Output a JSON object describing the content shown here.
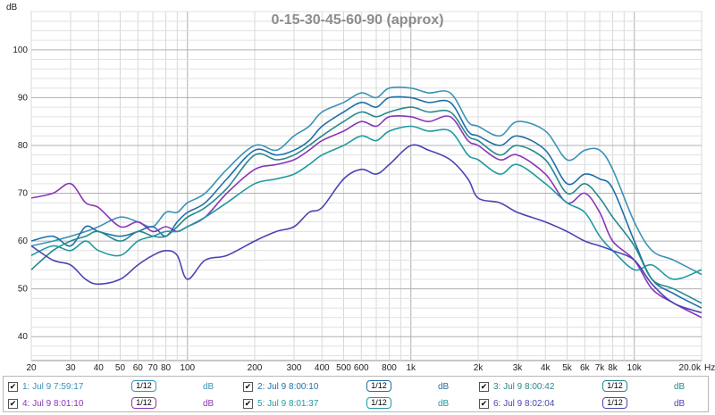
{
  "chart_data": {
    "type": "line",
    "title": "0-15-30-45-60-90 (approx)",
    "ylabel": "dB",
    "xlabel": "Hz",
    "xscale": "log",
    "xlim": [
      20,
      20000
    ],
    "ylim": [
      35,
      108
    ],
    "grid": true,
    "legend_position": "bottom",
    "y_ticks": [
      40,
      50,
      60,
      70,
      80,
      90,
      100
    ],
    "y_tick_labels": [
      "40",
      "50",
      "60",
      "70",
      "80",
      "90",
      "100"
    ],
    "x_ticks": [
      20,
      30,
      40,
      50,
      60,
      70,
      80,
      100,
      200,
      300,
      400,
      500,
      600,
      800,
      1000,
      2000,
      3000,
      4000,
      5000,
      6000,
      7000,
      8000,
      10000,
      20000
    ],
    "x_tick_labels": [
      "20",
      "30",
      "40",
      "50",
      "60",
      "70",
      "80",
      "100",
      "200",
      "300",
      "400",
      "500",
      "600",
      "800",
      "1k",
      "2k",
      "3k",
      "4k",
      "5k",
      "6k",
      "7k",
      "8k",
      "10k",
      "20.0k"
    ],
    "x": [
      20,
      25,
      30,
      35,
      40,
      50,
      60,
      70,
      80,
      90,
      100,
      120,
      150,
      200,
      250,
      300,
      350,
      400,
      500,
      600,
      700,
      800,
      1000,
      1200,
      1500,
      1800,
      2000,
      2500,
      3000,
      4000,
      5000,
      6000,
      7000,
      8000,
      10000,
      12000,
      15000,
      20000
    ],
    "series": [
      {
        "name": "1: Jul 9 7:59:17",
        "color": "#3a93b7",
        "smoothing": "1/12",
        "unit": "dB",
        "values": [
          59,
          60,
          61,
          62,
          63,
          65,
          64,
          63,
          66,
          66,
          68,
          70,
          75,
          80,
          79,
          82,
          84,
          87,
          89,
          91,
          90,
          92,
          92,
          91,
          91,
          85,
          84,
          82,
          85,
          83,
          77,
          79,
          79,
          75,
          64,
          58,
          56,
          53
        ]
      },
      {
        "name": "2: Jul 9 8:00:10",
        "color": "#1f6fa8",
        "smoothing": "1/12",
        "unit": "dB",
        "values": [
          60,
          61,
          59,
          63,
          62,
          61,
          62,
          63,
          61,
          64,
          66,
          68,
          73,
          79,
          78,
          79,
          81,
          84,
          87,
          89,
          88,
          90,
          90,
          89,
          89,
          83,
          82,
          80,
          82,
          79,
          72,
          74,
          73,
          71,
          60,
          52,
          49,
          46
        ]
      },
      {
        "name": "3: Jul 9 8:00:42",
        "color": "#27888d",
        "smoothing": "1/12",
        "unit": "dB",
        "values": [
          54,
          58,
          60,
          61,
          62,
          60,
          62,
          61,
          61,
          63,
          65,
          67,
          71,
          78,
          77,
          78,
          80,
          82,
          85,
          87,
          86,
          87,
          88,
          87,
          87,
          82,
          81,
          78,
          80,
          77,
          70,
          72,
          69,
          65,
          59,
          52,
          50,
          47
        ]
      },
      {
        "name": "4: Jul 9 8:01:10",
        "color": "#8b35b8",
        "smoothing": "1/12",
        "unit": "dB",
        "values": [
          69,
          70,
          72,
          68,
          67,
          63,
          64,
          62,
          63,
          62,
          63,
          65,
          70,
          75,
          76,
          77,
          79,
          81,
          83,
          85,
          84,
          86,
          86,
          85,
          86,
          81,
          80,
          77,
          78,
          74,
          68,
          70,
          66,
          60,
          56,
          50,
          47,
          44
        ]
      },
      {
        "name": "5: Jul 9 8:01:37",
        "color": "#1f9aa0",
        "smoothing": "1/12",
        "unit": "dB",
        "values": [
          57,
          59,
          58,
          60,
          58,
          57,
          60,
          61,
          62,
          62,
          63,
          65,
          68,
          72,
          73,
          74,
          76,
          78,
          80,
          82,
          81,
          83,
          84,
          83,
          83,
          78,
          77,
          74,
          76,
          72,
          68,
          66,
          61,
          58,
          54,
          55,
          52,
          54
        ]
      },
      {
        "name": "6: Jul 9 8:02:04",
        "color": "#4a44b3",
        "smoothing": "1/12",
        "unit": "dB",
        "values": [
          59,
          56,
          55,
          52,
          51,
          52,
          55,
          57,
          58,
          57,
          52,
          56,
          57,
          60,
          62,
          63,
          66,
          67,
          73,
          75,
          74,
          76,
          80,
          79,
          77,
          73,
          69,
          68,
          66,
          64,
          62,
          60,
          59,
          58,
          56,
          51,
          47,
          45
        ]
      }
    ]
  }
}
